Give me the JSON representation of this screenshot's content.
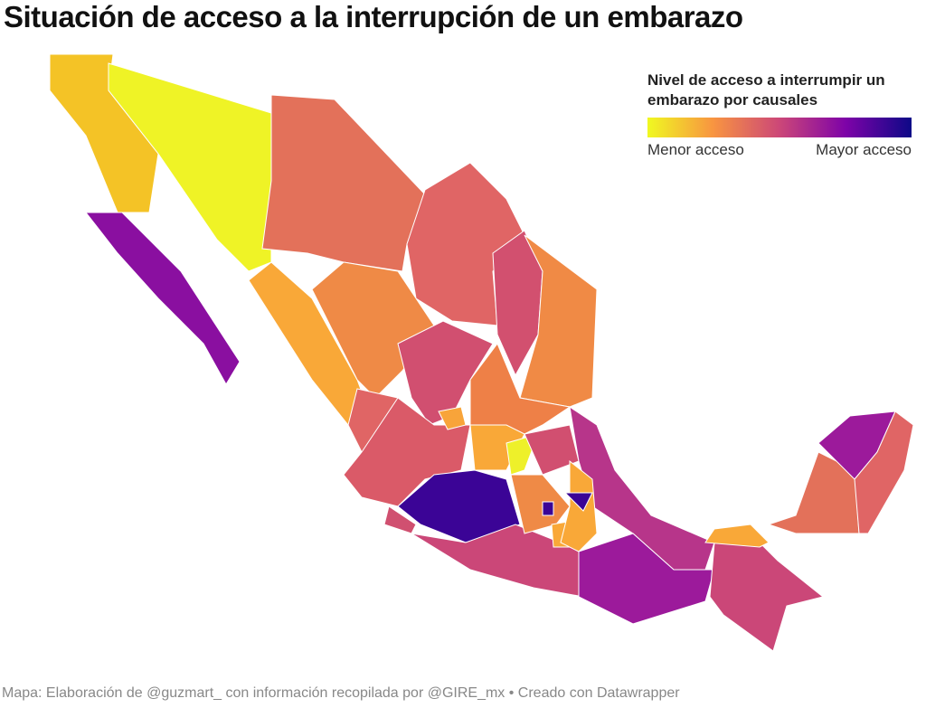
{
  "header": {
    "title": "Situación de acceso a la interrupción de un embarazo"
  },
  "legend": {
    "title": "Nivel de acceso a interrumpir un embarazo por causales",
    "low_label": "Menor acceso",
    "high_label": "Mayor acceso"
  },
  "footer": {
    "source": "Mapa: Elaboración de @guzmart_ con información recopilada por @GIRE_mx • Creado con Datawrapper"
  }
}
